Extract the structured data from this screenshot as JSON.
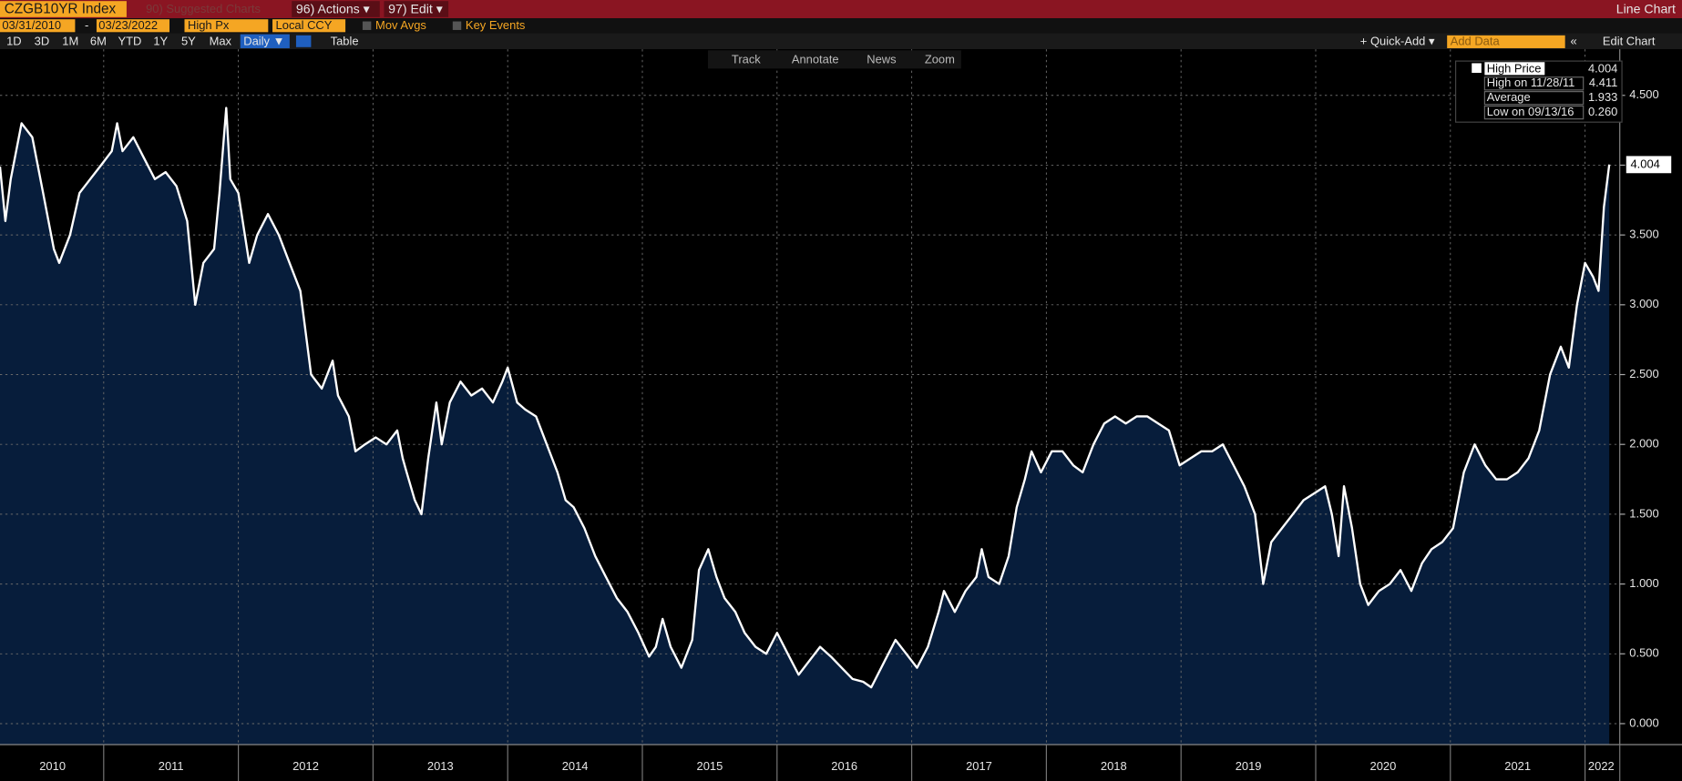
{
  "ui": {
    "ticker": "CZGB10YR Index",
    "suggested": "90) Suggested Charts",
    "actions": "96) Actions ▾",
    "edit": "97) Edit ▾",
    "chart_kind": "Line Chart",
    "start_date": "03/31/2010",
    "end_date": "03/23/2022",
    "field": "High Px",
    "currency": "Local CCY",
    "mov_avgs": "Mov Avgs",
    "key_events": "Key Events",
    "periods": [
      "1D",
      "3D",
      "1M",
      "6M",
      "YTD",
      "1Y",
      "5Y",
      "Max"
    ],
    "frequency": "Daily ▼",
    "table": "Table",
    "quick_add": "+ Quick-Add ▾",
    "add_data": "Add Data",
    "edit_chart": "Edit Chart",
    "tools": [
      "Track",
      "Annotate",
      "News",
      "Zoom"
    ]
  },
  "chart_data": {
    "type": "line",
    "x": [
      2010.23,
      2010.27,
      2010.31,
      2010.39,
      2010.47,
      2010.55,
      2010.63,
      2010.67,
      2010.75,
      2010.82,
      2010.9,
      2010.98,
      2011.06,
      2011.1,
      2011.14,
      2011.22,
      2011.3,
      2011.38,
      2011.46,
      2011.54,
      2011.62,
      2011.68,
      2011.74,
      2011.82,
      2011.86,
      2011.91,
      2011.94,
      2012.0,
      2012.08,
      2012.14,
      2012.22,
      2012.3,
      2012.38,
      2012.46,
      2012.54,
      2012.62,
      2012.7,
      2012.74,
      2012.82,
      2012.87,
      2012.94,
      2013.02,
      2013.1,
      2013.18,
      2013.22,
      2013.25,
      2013.31,
      2013.36,
      2013.41,
      2013.47,
      2013.51,
      2013.57,
      2013.65,
      2013.73,
      2013.81,
      2013.89,
      2013.96,
      2014.0,
      2014.07,
      2014.13,
      2014.21,
      2014.29,
      2014.37,
      2014.43,
      2014.49,
      2014.57,
      2014.65,
      2014.73,
      2014.81,
      2014.89,
      2014.97,
      2015.05,
      2015.1,
      2015.15,
      2015.21,
      2015.29,
      2015.37,
      2015.42,
      2015.49,
      2015.55,
      2015.61,
      2015.69,
      2015.76,
      2015.84,
      2015.92,
      2016.0,
      2016.08,
      2016.16,
      2016.24,
      2016.32,
      2016.4,
      2016.48,
      2016.56,
      2016.64,
      2016.7,
      2016.8,
      2016.88,
      2016.96,
      2017.04,
      2017.12,
      2017.2,
      2017.24,
      2017.32,
      2017.4,
      2017.48,
      2017.52,
      2017.57,
      2017.65,
      2017.72,
      2017.78,
      2017.84,
      2017.89,
      2017.96,
      2018.04,
      2018.12,
      2018.2,
      2018.27,
      2018.35,
      2018.43,
      2018.51,
      2018.59,
      2018.67,
      2018.75,
      2018.83,
      2018.91,
      2018.99,
      2019.07,
      2019.15,
      2019.23,
      2019.31,
      2019.39,
      2019.47,
      2019.55,
      2019.61,
      2019.67,
      2019.75,
      2019.83,
      2019.91,
      2019.99,
      2020.07,
      2020.12,
      2020.17,
      2020.21,
      2020.27,
      2020.33,
      2020.39,
      2020.47,
      2020.55,
      2020.63,
      2020.71,
      2020.79,
      2020.86,
      2020.94,
      2021.02,
      2021.1,
      2021.18,
      2021.26,
      2021.34,
      2021.42,
      2021.5,
      2021.58,
      2021.66,
      2021.74,
      2021.82,
      2021.88,
      2021.94,
      2022.0,
      2022.06,
      2022.1,
      2022.14,
      2022.18
    ],
    "series": [
      {
        "name": "High Price",
        "color": "#ffffff",
        "values": [
          3.99,
          3.6,
          3.9,
          4.3,
          4.2,
          3.8,
          3.4,
          3.3,
          3.5,
          3.8,
          3.9,
          4.0,
          4.1,
          4.3,
          4.1,
          4.2,
          4.05,
          3.9,
          3.95,
          3.85,
          3.6,
          3.0,
          3.3,
          3.4,
          3.8,
          4.41,
          3.9,
          3.8,
          3.3,
          3.5,
          3.65,
          3.5,
          3.3,
          3.1,
          2.5,
          2.4,
          2.6,
          2.35,
          2.2,
          1.95,
          2.0,
          2.05,
          2.0,
          2.1,
          1.9,
          1.8,
          1.6,
          1.5,
          1.9,
          2.3,
          2.0,
          2.3,
          2.45,
          2.35,
          2.4,
          2.3,
          2.45,
          2.55,
          2.3,
          2.25,
          2.2,
          2.0,
          1.8,
          1.6,
          1.55,
          1.4,
          1.2,
          1.05,
          0.9,
          0.8,
          0.65,
          0.48,
          0.55,
          0.75,
          0.55,
          0.4,
          0.6,
          1.1,
          1.25,
          1.05,
          0.9,
          0.8,
          0.65,
          0.55,
          0.5,
          0.65,
          0.5,
          0.35,
          0.45,
          0.55,
          0.48,
          0.4,
          0.32,
          0.3,
          0.26,
          0.45,
          0.6,
          0.5,
          0.4,
          0.55,
          0.8,
          0.95,
          0.8,
          0.95,
          1.05,
          1.25,
          1.05,
          1.0,
          1.2,
          1.55,
          1.75,
          1.95,
          1.8,
          1.95,
          1.95,
          1.85,
          1.8,
          2.0,
          2.15,
          2.2,
          2.15,
          2.2,
          2.2,
          2.15,
          2.1,
          1.85,
          1.9,
          1.95,
          1.95,
          2.0,
          1.85,
          1.7,
          1.5,
          1.0,
          1.3,
          1.4,
          1.5,
          1.6,
          1.65,
          1.7,
          1.5,
          1.2,
          1.7,
          1.4,
          1.0,
          0.85,
          0.95,
          1.0,
          1.1,
          0.95,
          1.15,
          1.25,
          1.3,
          1.4,
          1.8,
          2.0,
          1.85,
          1.75,
          1.75,
          1.8,
          1.9,
          2.1,
          2.5,
          2.7,
          2.55,
          3.0,
          3.3,
          3.2,
          3.1,
          3.7,
          4.004
        ]
      }
    ],
    "fill_color": "#071d3b",
    "last_value_label": "4.004",
    "stats": [
      {
        "label": "High on 11/28/11",
        "value": "4.411"
      },
      {
        "label": "Average",
        "value": "1.933"
      },
      {
        "label": "Low on 09/13/16",
        "value": "0.260"
      }
    ],
    "legend_value": "4.004",
    "xlim": [
      2010.23,
      2022.25
    ],
    "ylim": [
      -0.15,
      4.83
    ],
    "xticks": [
      {
        "value": 2010.62,
        "label": "2010"
      },
      {
        "value": 2011.5,
        "label": "2011"
      },
      {
        "value": 2012.5,
        "label": "2012"
      },
      {
        "value": 2013.5,
        "label": "2013"
      },
      {
        "value": 2014.5,
        "label": "2014"
      },
      {
        "value": 2015.5,
        "label": "2015"
      },
      {
        "value": 2016.5,
        "label": "2016"
      },
      {
        "value": 2017.5,
        "label": "2017"
      },
      {
        "value": 2018.5,
        "label": "2018"
      },
      {
        "value": 2019.5,
        "label": "2019"
      },
      {
        "value": 2020.5,
        "label": "2020"
      },
      {
        "value": 2021.5,
        "label": "2021"
      },
      {
        "value": 2022.12,
        "label": "2022"
      }
    ],
    "xgrid": [
      2011,
      2012,
      2013,
      2014,
      2015,
      2016,
      2017,
      2018,
      2019,
      2020,
      2021,
      2022
    ],
    "yticks": [
      {
        "value": 0,
        "label": "0.000"
      },
      {
        "value": 0.5,
        "label": "0.500"
      },
      {
        "value": 1,
        "label": "1.000"
      },
      {
        "value": 1.5,
        "label": "1.500"
      },
      {
        "value": 2,
        "label": "2.000"
      },
      {
        "value": 2.5,
        "label": "2.500"
      },
      {
        "value": 3,
        "label": "3.000"
      },
      {
        "value": 3.5,
        "label": "3.500"
      },
      {
        "value": 4,
        "label": "4.000"
      },
      {
        "value": 4.5,
        "label": "4.500"
      }
    ],
    "grid": true
  }
}
